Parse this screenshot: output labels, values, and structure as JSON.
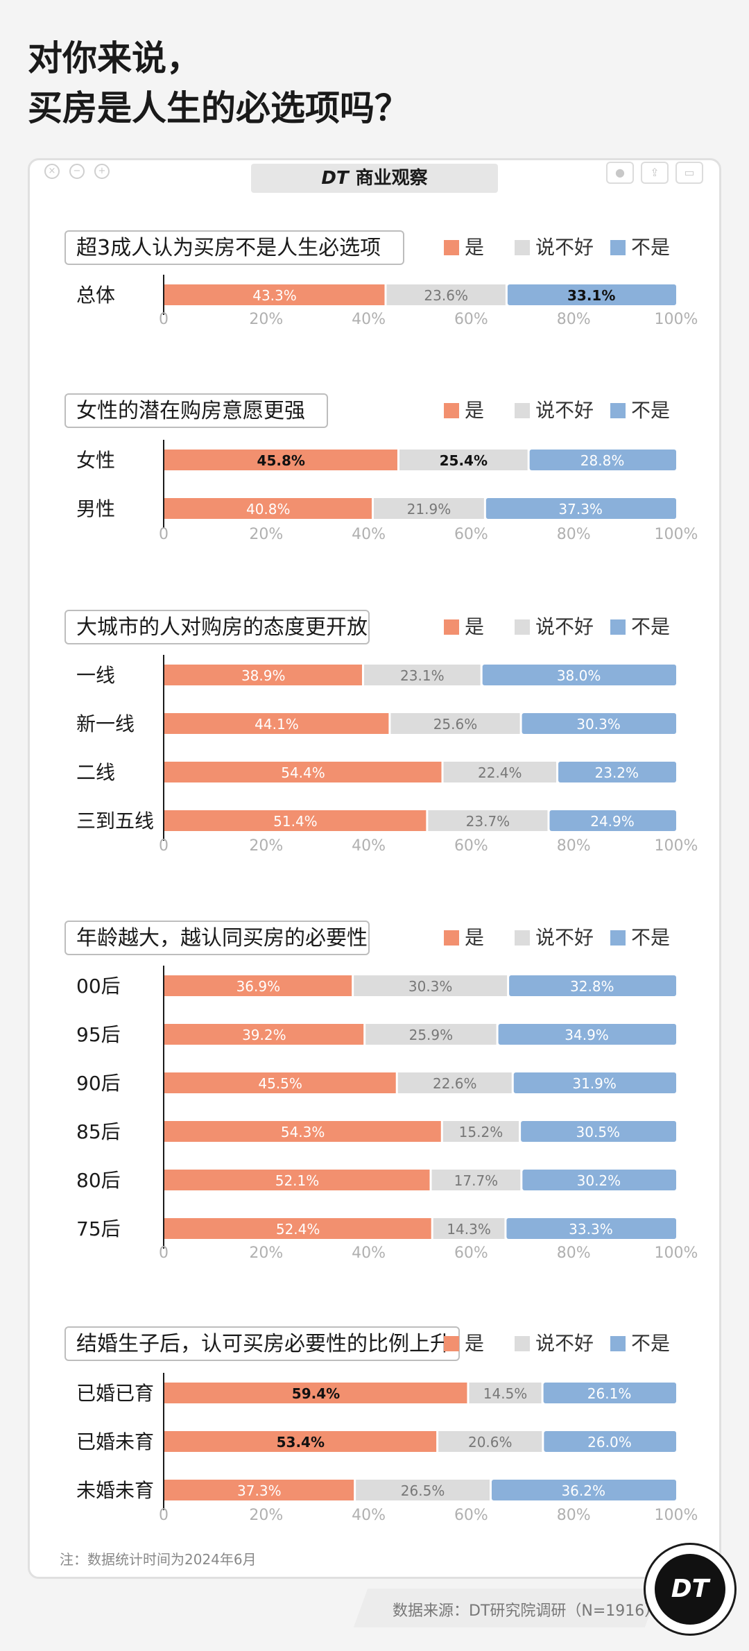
{
  "page": {
    "title_line1": "对你来说，",
    "title_line2": "买房是人生的必选项吗？",
    "brand_mark": "DT",
    "brand_name": "商业观察",
    "note": "注：数据统计时间为2024年6月",
    "source": "数据来源：DT研究院调研（N=1916）",
    "logo": "DT"
  },
  "window_controls": [
    "close-icon",
    "minimize-icon",
    "maximize-icon"
  ],
  "toolbar_icons": [
    "circle-icon",
    "share-icon",
    "window-icon"
  ],
  "colors": {
    "yes": "#F2906F",
    "unsure": "#DCDCDC",
    "no": "#8AB0DA",
    "axis": "#1a1a1a",
    "tick": "#b0b0b0"
  },
  "chart_data": [
    {
      "type": "bar",
      "orientation": "horizontal-stacked-100",
      "title": "超3成人认为买房不是人生必选项",
      "legend": [
        "是",
        "说不好",
        "不是"
      ],
      "legend_position": "top-right",
      "categories": [
        "总体"
      ],
      "series": [
        {
          "name": "是",
          "values": [
            43.3
          ]
        },
        {
          "name": "说不好",
          "values": [
            23.6
          ]
        },
        {
          "name": "不是",
          "values": [
            33.1
          ]
        }
      ],
      "labels": [
        [
          "43.3%",
          "23.6%",
          "33.1%"
        ]
      ],
      "bold": [
        [
          false,
          false,
          true
        ]
      ],
      "xticks": [
        "0",
        "20%",
        "40%",
        "60%",
        "80%",
        "100%"
      ],
      "xlim": [
        0,
        100
      ]
    },
    {
      "type": "bar",
      "orientation": "horizontal-stacked-100",
      "title": "女性的潜在购房意愿更强",
      "legend": [
        "是",
        "说不好",
        "不是"
      ],
      "legend_position": "top-right",
      "categories": [
        "女性",
        "男性"
      ],
      "series": [
        {
          "name": "是",
          "values": [
            45.8,
            40.8
          ]
        },
        {
          "name": "说不好",
          "values": [
            25.4,
            21.9
          ]
        },
        {
          "name": "不是",
          "values": [
            28.8,
            37.3
          ]
        }
      ],
      "labels": [
        [
          "45.8%",
          "25.4%",
          "28.8%"
        ],
        [
          "40.8%",
          "21.9%",
          "37.3%"
        ]
      ],
      "bold": [
        [
          true,
          true,
          false
        ],
        [
          false,
          false,
          false
        ]
      ],
      "xticks": [
        "0",
        "20%",
        "40%",
        "60%",
        "80%",
        "100%"
      ],
      "xlim": [
        0,
        100
      ]
    },
    {
      "type": "bar",
      "orientation": "horizontal-stacked-100",
      "title": "大城市的人对购房的态度更开放",
      "legend": [
        "是",
        "说不好",
        "不是"
      ],
      "legend_position": "top-right",
      "categories": [
        "一线",
        "新一线",
        "二线",
        "三到五线"
      ],
      "series": [
        {
          "name": "是",
          "values": [
            38.9,
            44.1,
            54.4,
            51.4
          ]
        },
        {
          "name": "说不好",
          "values": [
            23.1,
            25.6,
            22.4,
            23.7
          ]
        },
        {
          "name": "不是",
          "values": [
            38.0,
            30.3,
            23.2,
            24.9
          ]
        }
      ],
      "labels": [
        [
          "38.9%",
          "23.1%",
          "38.0%"
        ],
        [
          "44.1%",
          "25.6%",
          "30.3%"
        ],
        [
          "54.4%",
          "22.4%",
          "23.2%"
        ],
        [
          "51.4%",
          "23.7%",
          "24.9%"
        ]
      ],
      "bold": [
        [
          false,
          false,
          false
        ],
        [
          false,
          false,
          false
        ],
        [
          false,
          false,
          false
        ],
        [
          false,
          false,
          false
        ]
      ],
      "xticks": [
        "0",
        "20%",
        "40%",
        "60%",
        "80%",
        "100%"
      ],
      "xlim": [
        0,
        100
      ]
    },
    {
      "type": "bar",
      "orientation": "horizontal-stacked-100",
      "title": "年龄越大，越认同买房的必要性",
      "legend": [
        "是",
        "说不好",
        "不是"
      ],
      "legend_position": "top-right",
      "categories": [
        "00后",
        "95后",
        "90后",
        "85后",
        "80后",
        "75后"
      ],
      "series": [
        {
          "name": "是",
          "values": [
            36.9,
            39.2,
            45.5,
            54.3,
            52.1,
            52.4
          ]
        },
        {
          "name": "说不好",
          "values": [
            30.3,
            25.9,
            22.6,
            15.2,
            17.7,
            14.3
          ]
        },
        {
          "name": "不是",
          "values": [
            32.8,
            34.9,
            31.9,
            30.5,
            30.2,
            33.3
          ]
        }
      ],
      "labels": [
        [
          "36.9%",
          "30.3%",
          "32.8%"
        ],
        [
          "39.2%",
          "25.9%",
          "34.9%"
        ],
        [
          "45.5%",
          "22.6%",
          "31.9%"
        ],
        [
          "54.3%",
          "15.2%",
          "30.5%"
        ],
        [
          "52.1%",
          "17.7%",
          "30.2%"
        ],
        [
          "52.4%",
          "14.3%",
          "33.3%"
        ]
      ],
      "bold": [
        [
          false,
          false,
          false
        ],
        [
          false,
          false,
          false
        ],
        [
          false,
          false,
          false
        ],
        [
          false,
          false,
          false
        ],
        [
          false,
          false,
          false
        ],
        [
          false,
          false,
          false
        ]
      ],
      "xticks": [
        "0",
        "20%",
        "40%",
        "60%",
        "80%",
        "100%"
      ],
      "xlim": [
        0,
        100
      ]
    },
    {
      "type": "bar",
      "orientation": "horizontal-stacked-100",
      "title": "结婚生子后，认可买房必要性的比例上升",
      "legend": [
        "是",
        "说不好",
        "不是"
      ],
      "legend_position": "top-right",
      "categories": [
        "已婚已育",
        "已婚未育",
        "未婚未育"
      ],
      "series": [
        {
          "name": "是",
          "values": [
            59.4,
            53.4,
            37.3
          ]
        },
        {
          "name": "说不好",
          "values": [
            14.5,
            20.6,
            26.5
          ]
        },
        {
          "name": "不是",
          "values": [
            26.1,
            26.0,
            36.2
          ]
        }
      ],
      "labels": [
        [
          "59.4%",
          "14.5%",
          "26.1%"
        ],
        [
          "53.4%",
          "20.6%",
          "26.0%"
        ],
        [
          "37.3%",
          "26.5%",
          "36.2%"
        ]
      ],
      "bold": [
        [
          true,
          false,
          false
        ],
        [
          true,
          false,
          false
        ],
        [
          false,
          false,
          false
        ]
      ],
      "xticks": [
        "0",
        "20%",
        "40%",
        "60%",
        "80%",
        "100%"
      ],
      "xlim": [
        0,
        100
      ]
    }
  ]
}
